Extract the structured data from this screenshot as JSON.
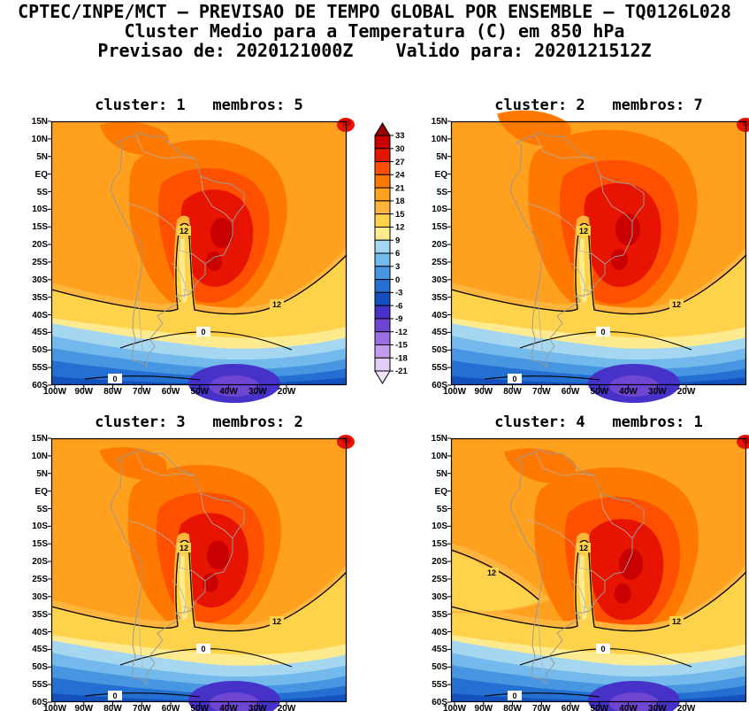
{
  "header": {
    "line1": "CPTEC/INPE/MCT — PREVISAO DE TEMPO GLOBAL POR ENSEMBLE — TQ0126L028",
    "line2": "Cluster Medio para a Temperatura (C) em 850 hPa",
    "line3": "Previsao de: 2020121000Z    Valido para: 2020121512Z"
  },
  "chart_data": {
    "type": "heatmap",
    "subtype": "filled-contour-map-grid-2x2",
    "title": "CPTEC/INPE/MCT — PREVISAO DE TEMPO GLOBAL POR ENSEMBLE — TQ0126L028",
    "subtitle": "Cluster Medio para a Temperatura (C) em 850 hPa",
    "model": "TQ0126L028",
    "variable": "Temperatura",
    "units": "C",
    "level": "850 hPa",
    "init_time": "2020121000Z",
    "valid_time": "2020121512Z",
    "panels": [
      {
        "cluster": "1",
        "membros": "5",
        "title": "cluster: 1   membros: 5"
      },
      {
        "cluster": "2",
        "membros": "7",
        "title": "cluster: 2   membros: 7"
      },
      {
        "cluster": "3",
        "membros": "2",
        "title": "cluster: 3   membros: 2"
      },
      {
        "cluster": "4",
        "membros": "1",
        "title": "cluster: 4   membros: 1"
      }
    ],
    "x_ticks": [
      "100W",
      "90W",
      "80W",
      "70W",
      "60W",
      "50W",
      "40W",
      "30W",
      "20W"
    ],
    "y_ticks": [
      "15N",
      "10N",
      "5N",
      "EQ",
      "5S",
      "10S",
      "15S",
      "20S",
      "25S",
      "30S",
      "35S",
      "40S",
      "45S",
      "50S",
      "55S",
      "60S"
    ],
    "x_range": [
      "100W",
      "20W"
    ],
    "y_range": [
      "15N",
      "60S"
    ],
    "grid": false,
    "legend_position": "center-top-between-panels",
    "colorbar": {
      "ticks": [
        33,
        30,
        27,
        24,
        21,
        18,
        15,
        12,
        9,
        6,
        3,
        0,
        -3,
        -6,
        -9,
        -12,
        -15,
        -18,
        -21
      ],
      "colors": [
        "#960000",
        "#c80000",
        "#e61400",
        "#ff5000",
        "#ff7800",
        "#ffa01e",
        "#ffb43c",
        "#ffd24b",
        "#ffeb8f",
        "#a5d7f0",
        "#73b9eb",
        "#4696e1",
        "#2370d2",
        "#1450be",
        "#4632c8",
        "#6e46d2",
        "#9b6ee1",
        "#c39beb",
        "#e1cdf5",
        "#f0e6fa"
      ]
    },
    "contour_labels": [
      "12",
      "0"
    ]
  }
}
